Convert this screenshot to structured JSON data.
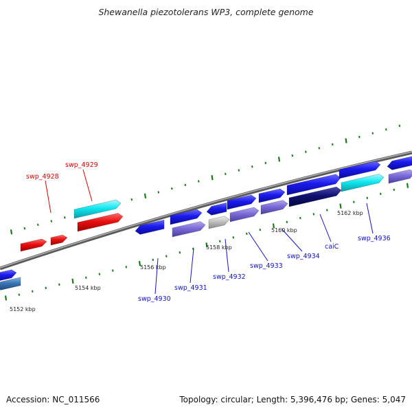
{
  "title": "Shewanella piezotolerans WP3, complete genome",
  "footer": {
    "accession": "Accession: NC_011566",
    "summary": "Topology: circular; Length: 5,396,476 bp; Genes: 5,047"
  },
  "colors": {
    "red_gene": "#e81010",
    "red_label": "#e00000",
    "blue_gene": "#1a1aee",
    "blue_label": "#1010cc",
    "purple_gene": "#7a6ad8",
    "cyan_gene": "#10e8f0",
    "navy_gene": "#101070",
    "grey_gene": "#c0c0c0",
    "steel_gene": "#3a78b8",
    "backbone": "#888888",
    "tick": "#1a7a1a"
  },
  "scale_labels": [
    "5152 kbp",
    "5154 kbp",
    "5156 kbp",
    "5158 kbp",
    "5160 kbp",
    "5162 kbp"
  ],
  "gene_labels": [
    {
      "name": "swp_4928",
      "color": "red"
    },
    {
      "name": "swp_4929",
      "color": "red"
    },
    {
      "name": "swp_4930",
      "color": "blue"
    },
    {
      "name": "swp_4931",
      "color": "blue"
    },
    {
      "name": "swp_4932",
      "color": "blue"
    },
    {
      "name": "swp_4933",
      "color": "blue"
    },
    {
      "name": "swp_4934",
      "color": "blue"
    },
    {
      "name": "caiC",
      "color": "blue"
    },
    {
      "name": "swp_4936",
      "color": "blue"
    }
  ]
}
